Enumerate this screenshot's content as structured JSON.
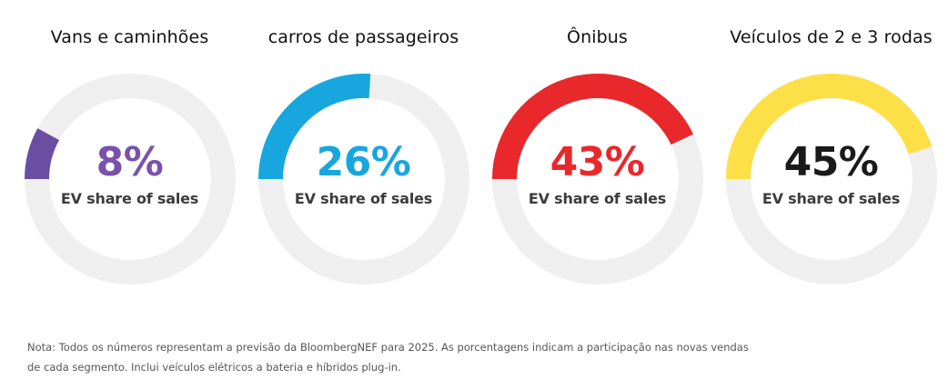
{
  "chart_data": {
    "type": "pie",
    "subtype": "donut-gauge",
    "title": "",
    "metric_label": "EV share of sales",
    "value_unit": "%",
    "start_angle": "9 o'clock, clockwise",
    "track_color": "#efefef",
    "series": [
      {
        "name": "Vans e caminhões",
        "value": 8,
        "label": "8%",
        "color": "#6b4ea2",
        "text_color": "#7a52ab"
      },
      {
        "name": "carros de passageiros",
        "value": 26,
        "label": "26%",
        "color": "#18a6df",
        "text_color": "#18a6df"
      },
      {
        "name": "Ônibus",
        "value": 43,
        "label": "43%",
        "color": "#e8282b",
        "text_color": "#e8282b"
      },
      {
        "name": "Veículos de 2 e 3 rodas",
        "value": 45,
        "label": "45%",
        "color": "#fde047",
        "text_color": "#1a1a1a"
      }
    ]
  },
  "footnote": {
    "line1": "Nota: Todos os números representam a previsão da BloombergNEF para 2025. As porcentagens indicam a participação nas novas vendas",
    "line2": "de cada segmento. Inclui veículos elétricos a bateria e híbridos plug-in."
  }
}
